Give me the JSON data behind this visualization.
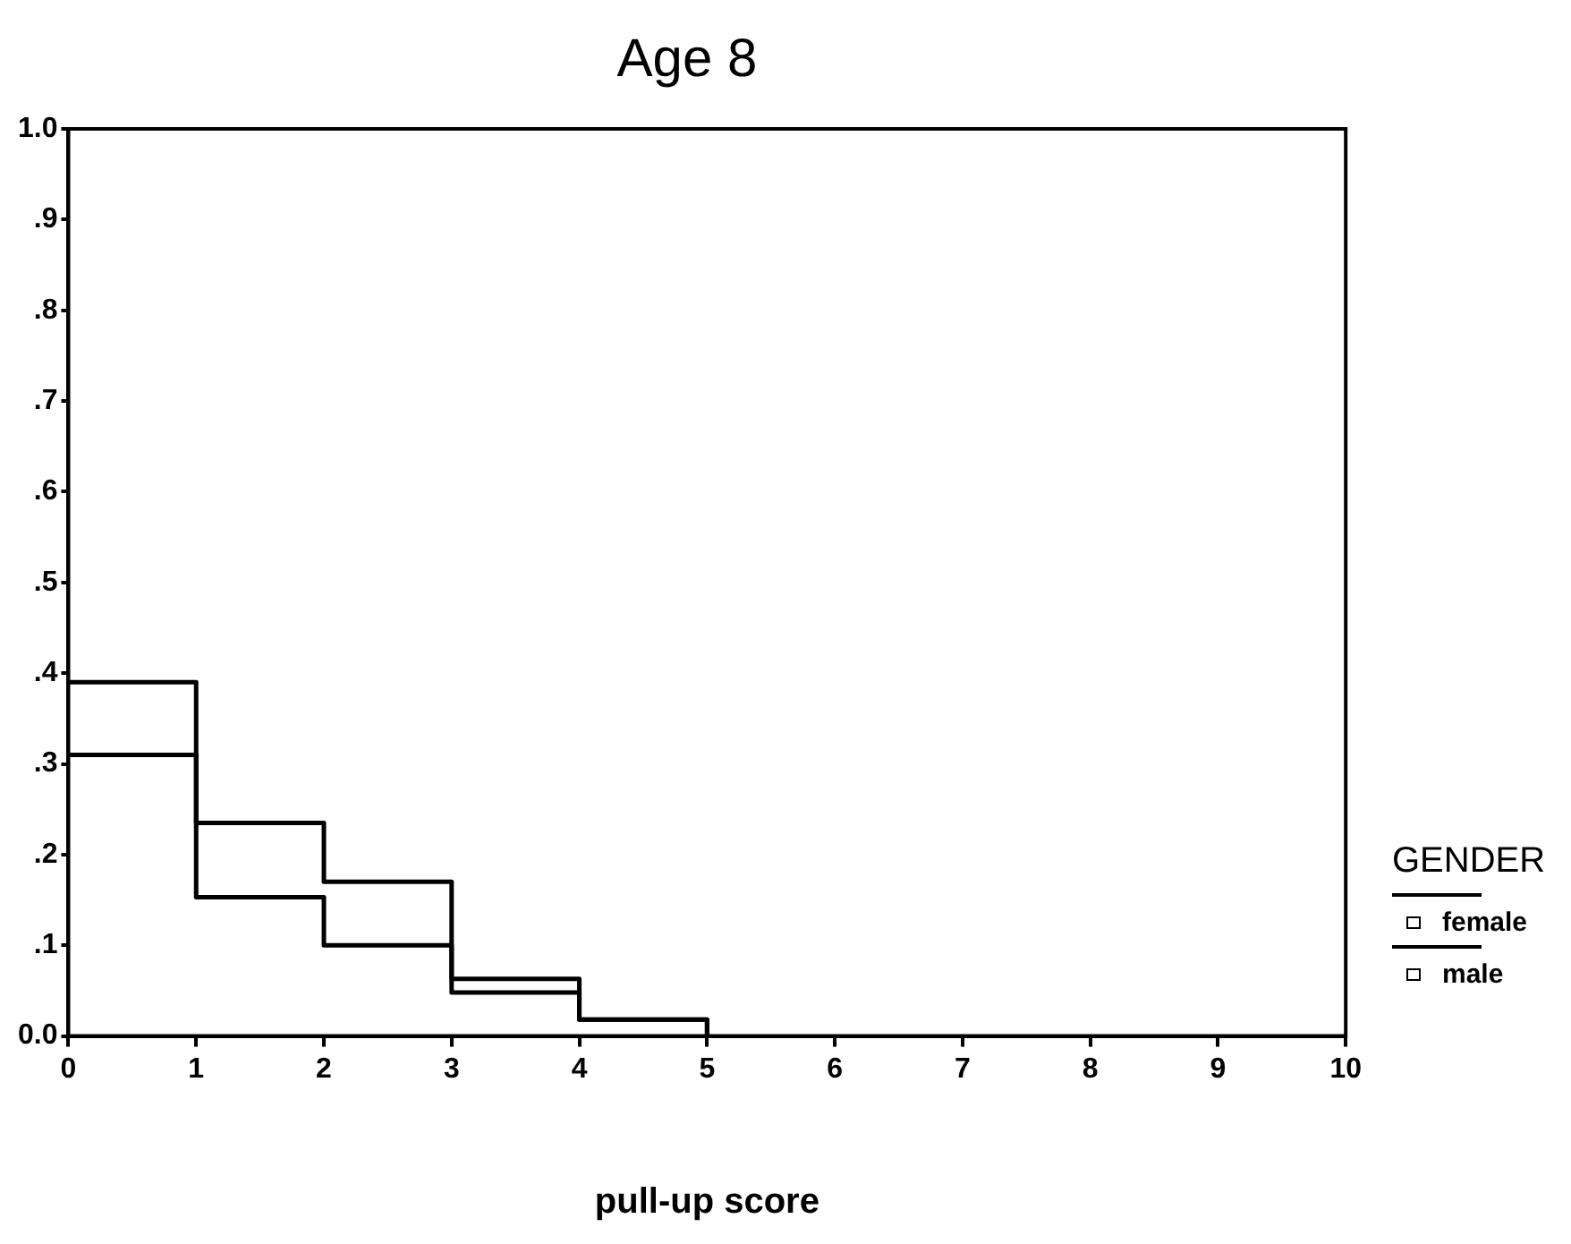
{
  "chart_data": {
    "type": "step",
    "title": "Age 8",
    "xlabel": "pull-up score",
    "legend_title": "GENDER",
    "legend": "right",
    "x": [
      0,
      1,
      2,
      3,
      4,
      5
    ],
    "series": [
      {
        "name": "female",
        "color": "#000000",
        "values": [
          0.39,
          0.235,
          0.17,
          0.063,
          0.018,
          0
        ]
      },
      {
        "name": "male",
        "color": "#000000",
        "values": [
          0.31,
          0.153,
          0.1,
          0.048,
          0.018,
          0
        ]
      }
    ],
    "xlim": [
      0,
      10
    ],
    "xticks": [
      0,
      1,
      2,
      3,
      4,
      5,
      6,
      7,
      8,
      9,
      10
    ],
    "ylim": [
      0,
      1
    ],
    "yticks": [
      {
        "value": 0,
        "label": "0.0"
      },
      {
        "value": 0.1,
        "label": ".1"
      },
      {
        "value": 0.2,
        "label": ".2"
      },
      {
        "value": 0.3,
        "label": ".3"
      },
      {
        "value": 0.4,
        "label": ".4"
      },
      {
        "value": 0.5,
        "label": ".5"
      },
      {
        "value": 0.6,
        "label": ".6"
      },
      {
        "value": 0.7,
        "label": ".7"
      },
      {
        "value": 0.8,
        "label": ".8"
      },
      {
        "value": 0.9,
        "label": ".9"
      },
      {
        "value": 1,
        "label": "1.0"
      }
    ],
    "grid": false
  }
}
